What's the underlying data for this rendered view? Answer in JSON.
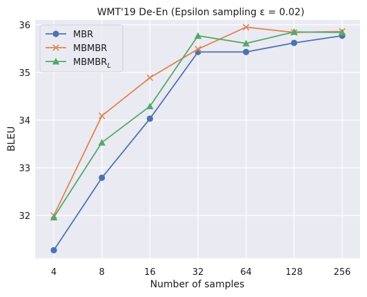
{
  "chart_data": {
    "type": "line",
    "title": "WMT'19 De-En (Epsilon sampling ε = 0.02)",
    "xlabel": "Number of samples",
    "ylabel": "BLEU",
    "categories": [
      "4",
      "8",
      "16",
      "32",
      "64",
      "128",
      "256"
    ],
    "yticks": [
      "32",
      "33",
      "34",
      "35",
      "36"
    ],
    "ylim": [
      31.1,
      36.1
    ],
    "grid": true,
    "legend_position": "top-left",
    "series": [
      {
        "name": "MBR",
        "color": "#4c72b0",
        "marker": "circle",
        "values": [
          31.27,
          32.79,
          34.03,
          35.43,
          35.43,
          35.62,
          35.77
        ]
      },
      {
        "name": "MBMBR",
        "color": "#dd8452",
        "marker": "x",
        "values": [
          32.0,
          34.09,
          34.89,
          35.49,
          35.95,
          35.84,
          35.86
        ]
      },
      {
        "name": "MBMBR",
        "name_subscript": "L",
        "color": "#55a868",
        "marker": "triangle",
        "values": [
          31.96,
          33.53,
          34.29,
          35.77,
          35.61,
          35.85,
          35.84
        ]
      }
    ]
  }
}
